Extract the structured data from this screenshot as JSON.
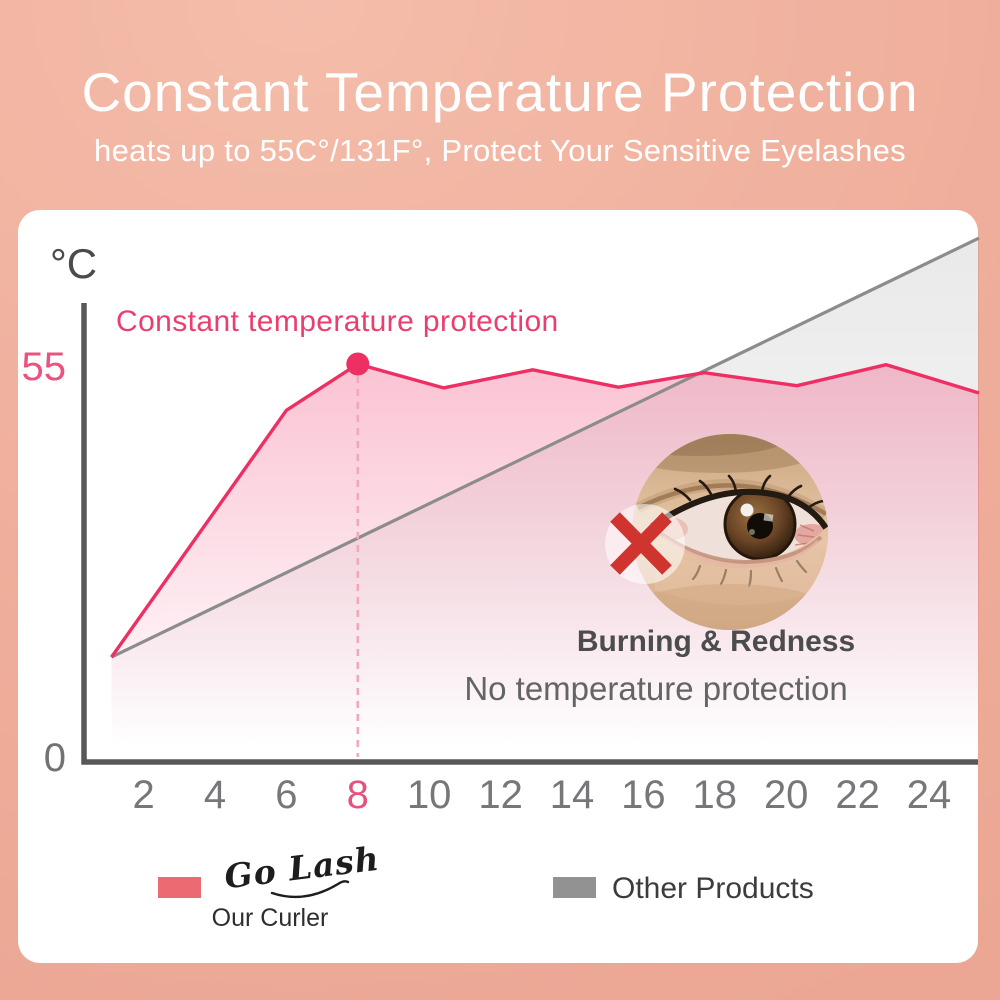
{
  "header": {
    "title": "Constant Temperature Protection",
    "subtitle": "heats up to 55C°/131F°, Protect Your Sensitive Eyelashes"
  },
  "chart_data": {
    "type": "area",
    "title": "Constant temperature protection",
    "y_axis": {
      "unit": "°C",
      "ticks": [
        "55",
        "0"
      ],
      "min": 0
    },
    "x_ticks": [
      2,
      4,
      6,
      8,
      10,
      12,
      14,
      16,
      18,
      20,
      22,
      24
    ],
    "highlight": {
      "x": 8,
      "y": 55
    },
    "series": [
      {
        "name": "Our Curler",
        "brand": "Go Lash",
        "color": "#ee2f63",
        "x": [
          1.1,
          6.0,
          8,
          10.4,
          12.9,
          15.3,
          17.7,
          20.3,
          22.8,
          25.4
        ],
        "y": [
          14.5,
          48.6,
          55,
          51.7,
          54.2,
          51.8,
          53.8,
          52.0,
          54.9,
          51.0
        ]
      },
      {
        "name": "Other Products",
        "color": "#8c8c8c",
        "x": [
          1.1,
          25.4
        ],
        "y": [
          14.5,
          72.4
        ]
      }
    ],
    "annotations": {
      "burning": "Burning & Redness",
      "no_protection": "No temperature protection"
    },
    "legend_position": "bottom",
    "grid": false
  },
  "legend": {
    "ours": {
      "brand": "Go Lash",
      "label": "Our Curler",
      "swatch": "#ec6a72"
    },
    "others": {
      "label": "Other Products",
      "swatch": "#929292"
    }
  },
  "colors": {
    "background": "#efae9b",
    "card": "#ffffff",
    "pink_line": "#ee2f63",
    "pink_label": "#e4537b",
    "gray_line": "#8c8c8c",
    "dashed_guide": "#f2a8bc",
    "axis": "#58585a",
    "red_x": "#cf352e"
  }
}
